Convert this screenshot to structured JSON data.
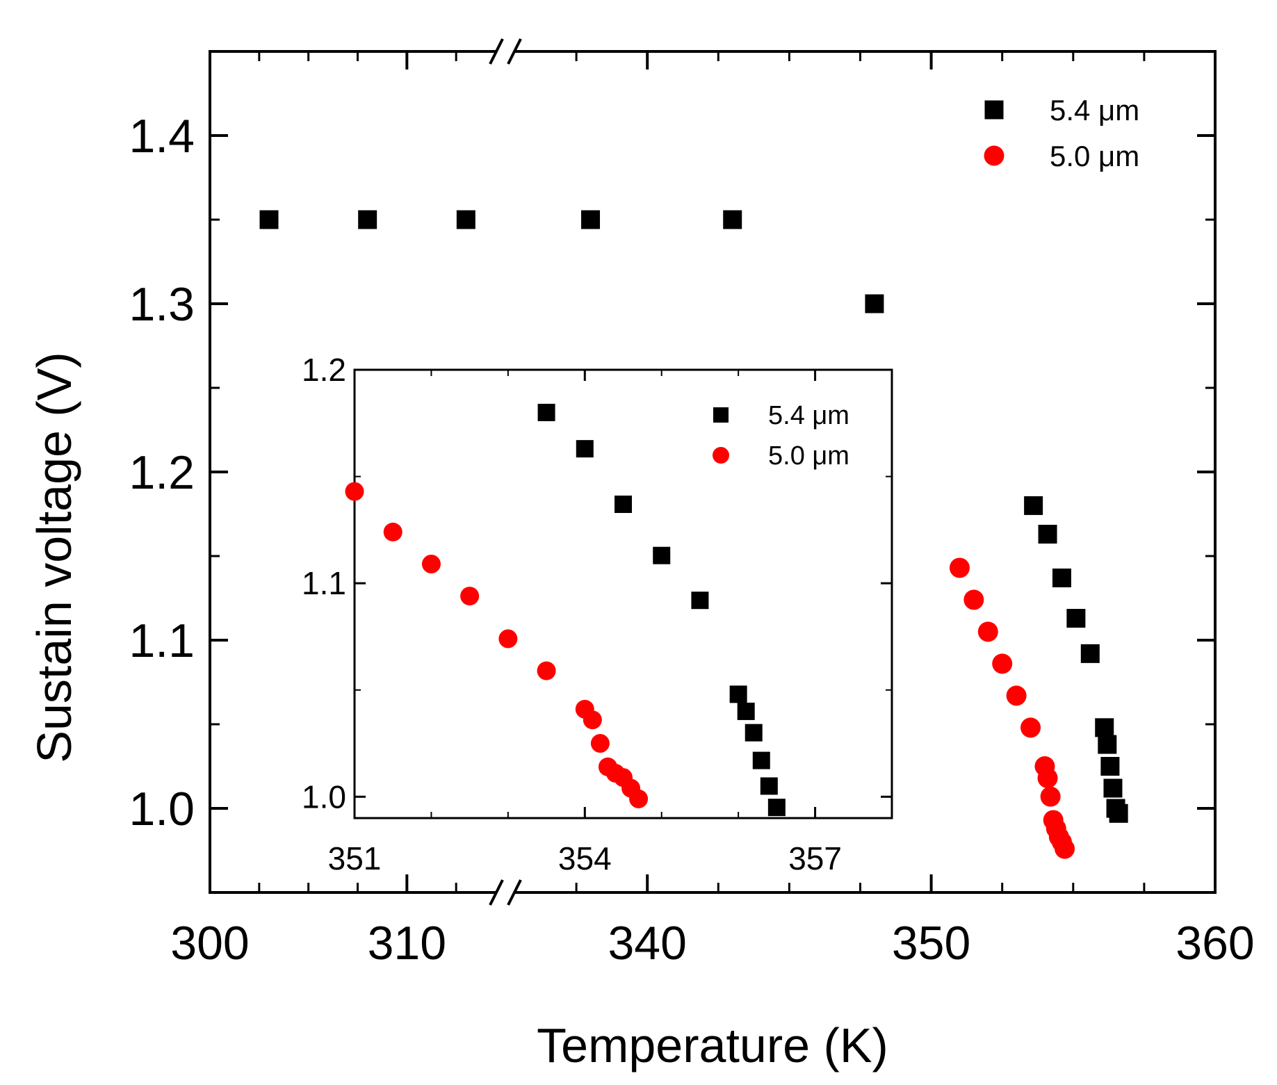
{
  "chart_data": [
    {
      "id": "main",
      "type": "scatter",
      "title": "",
      "xlabel": "Temperature (K)",
      "ylabel": "Sustain voltage (V)",
      "xaxis_break": "between 310 and 340",
      "xlim_segment_1": [
        300,
        315
      ],
      "xlim_segment_2": [
        335,
        360
      ],
      "ylim": [
        0.95,
        1.45
      ],
      "x_ticks": [
        300,
        310,
        340,
        350,
        360
      ],
      "y_ticks": [
        1.0,
        1.1,
        1.2,
        1.3,
        1.4
      ],
      "x_tick_labels": [
        "300",
        "310",
        "340",
        "350",
        "360"
      ],
      "y_tick_labels": [
        "1.0",
        "1.1",
        "1.2",
        "1.3",
        "1.4"
      ],
      "grid": false,
      "legend_position": "top-right",
      "series": [
        {
          "name": "5.4 μm",
          "marker": "square",
          "color": "#000000",
          "points": [
            [
              303,
              1.35
            ],
            [
              308,
              1.35
            ],
            [
              313,
              1.35
            ],
            [
              338,
              1.35
            ],
            [
              343,
              1.35
            ],
            [
              348,
              1.3
            ],
            [
              353.6,
              1.18
            ],
            [
              354.1,
              1.163
            ],
            [
              354.6,
              1.137
            ],
            [
              355.1,
              1.113
            ],
            [
              355.6,
              1.092
            ],
            [
              356.1,
              1.048
            ],
            [
              356.2,
              1.038
            ],
            [
              356.3,
              1.025
            ],
            [
              356.4,
              1.012
            ],
            [
              356.5,
              1.0
            ],
            [
              356.6,
              0.997
            ]
          ]
        },
        {
          "name": "5.0 μm",
          "marker": "circle",
          "color": "#ff0000",
          "points": [
            [
              351.0,
              1.143
            ],
            [
              351.5,
              1.124
            ],
            [
              352.0,
              1.105
            ],
            [
              352.5,
              1.086
            ],
            [
              353.0,
              1.067
            ],
            [
              353.5,
              1.048
            ],
            [
              354.0,
              1.025
            ],
            [
              354.1,
              1.018
            ],
            [
              354.2,
              1.007
            ],
            [
              354.3,
              0.993
            ],
            [
              354.4,
              0.988
            ],
            [
              354.5,
              0.983
            ],
            [
              354.6,
              0.98
            ],
            [
              354.7,
              0.976
            ]
          ]
        }
      ]
    },
    {
      "id": "inset",
      "type": "scatter",
      "title": "",
      "xlabel": "",
      "ylabel": "",
      "xlim": [
        351,
        358
      ],
      "ylim": [
        0.99,
        1.2
      ],
      "x_ticks": [
        351,
        354,
        357
      ],
      "y_ticks": [
        1.0,
        1.1,
        1.2
      ],
      "x_tick_labels": [
        "351",
        "354",
        "357"
      ],
      "y_tick_labels": [
        "1.0",
        "1.1",
        "1.2"
      ],
      "grid": false,
      "legend_position": "top-right",
      "series": [
        {
          "name": "5.4 μm",
          "marker": "square",
          "color": "#000000",
          "points": [
            [
              353.5,
              1.18
            ],
            [
              354.0,
              1.163
            ],
            [
              354.5,
              1.137
            ],
            [
              355.0,
              1.113
            ],
            [
              355.5,
              1.092
            ],
            [
              356.0,
              1.048
            ],
            [
              356.1,
              1.04
            ],
            [
              356.2,
              1.03
            ],
            [
              356.3,
              1.017
            ],
            [
              356.4,
              1.005
            ],
            [
              356.5,
              0.995
            ]
          ]
        },
        {
          "name": "5.0 μm",
          "marker": "circle",
          "color": "#ff0000",
          "points": [
            [
              351.0,
              1.143
            ],
            [
              351.5,
              1.124
            ],
            [
              352.0,
              1.109
            ],
            [
              352.5,
              1.094
            ],
            [
              353.0,
              1.074
            ],
            [
              353.5,
              1.059
            ],
            [
              354.0,
              1.041
            ],
            [
              354.1,
              1.036
            ],
            [
              354.2,
              1.025
            ],
            [
              354.3,
              1.014
            ],
            [
              354.4,
              1.011
            ],
            [
              354.5,
              1.009
            ],
            [
              354.6,
              1.004
            ],
            [
              354.7,
              0.999
            ]
          ]
        }
      ]
    }
  ]
}
